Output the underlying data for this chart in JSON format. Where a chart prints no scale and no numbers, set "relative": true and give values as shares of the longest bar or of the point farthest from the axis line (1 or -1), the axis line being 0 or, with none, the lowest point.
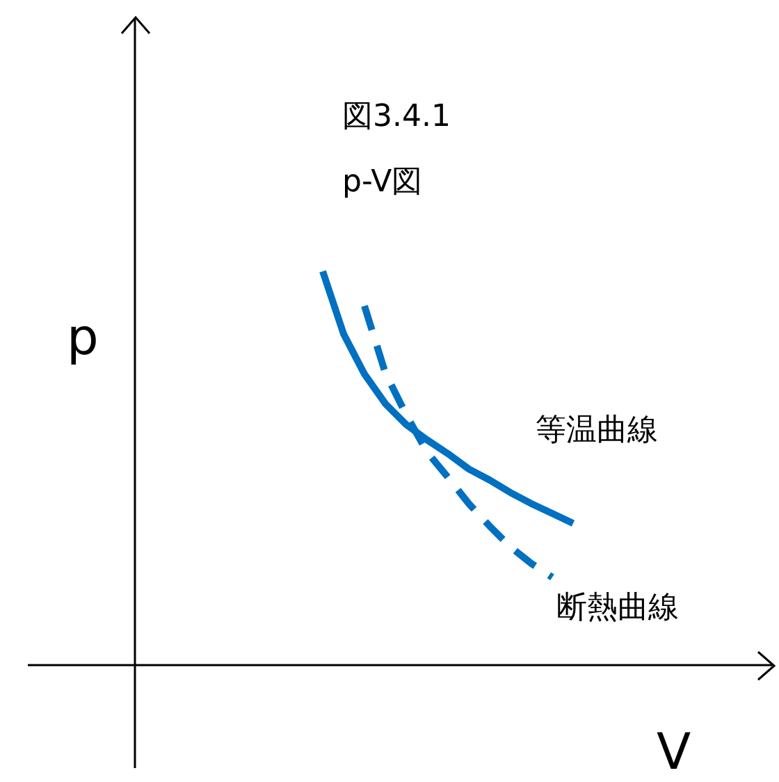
{
  "chart_data": {
    "type": "line",
    "title": "図3.4.1",
    "subtitle": "p-V図",
    "xlabel": "V",
    "ylabel": "p",
    "relative": true,
    "legend": false,
    "marker": "none",
    "categories": [
      null,
      null,
      null,
      null,
      null,
      null,
      null,
      null,
      null,
      null,
      null,
      null,
      null
    ],
    "series": [
      {
        "name": "等温曲線",
        "color": "#0070c0",
        "line_style": "solid",
        "values": [
          1.0,
          0.841,
          0.739,
          0.664,
          0.611,
          0.572,
          0.537,
          0.498,
          0.47,
          0.438,
          0.41,
          0.385,
          0.36
        ]
      },
      {
        "name": "断熱曲線",
        "color": "#0070c0",
        "line_style": "dashed",
        "values": [
          null,
          null,
          0.912,
          0.742,
          0.636,
          0.541,
          0.477,
          0.41,
          0.353,
          0.3,
          0.258,
          0.223,
          null
        ]
      }
    ]
  }
}
